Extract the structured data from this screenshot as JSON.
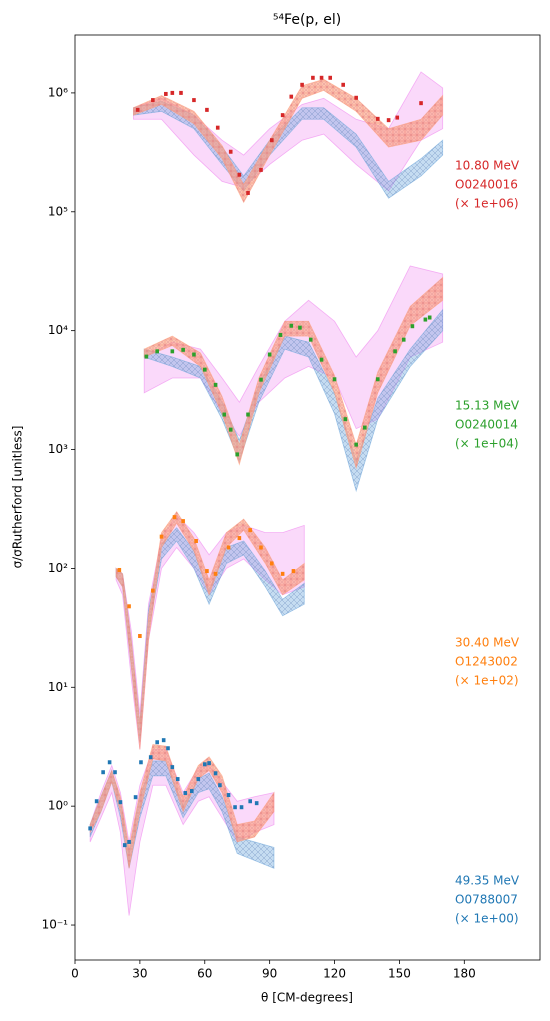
{
  "chart_data": {
    "type": "scatter",
    "title": "⁵⁴Fe(p, el)",
    "xlabel": "θ [CM-degrees]",
    "ylabel": "σ/σRutherford [unitless]",
    "log_y": true,
    "xlim": [
      0,
      215
    ],
    "ylim": [
      0.0508,
      3070000
    ],
    "xticks": [
      0,
      30,
      60,
      90,
      120,
      150,
      180
    ],
    "yticks": [
      {
        "value": 0.1,
        "label": "10⁻¹"
      },
      {
        "value": 1,
        "label": "10⁰"
      },
      {
        "value": 10,
        "label": "10¹"
      },
      {
        "value": 100,
        "label": "10²"
      },
      {
        "value": 1000,
        "label": "10³"
      },
      {
        "value": 10000,
        "label": "10⁴"
      },
      {
        "value": 100000,
        "label": "10⁵"
      },
      {
        "value": 1000000,
        "label": "10⁶"
      }
    ],
    "annotations": [
      {
        "color": "#d62728",
        "lines": [
          "10.80 MeV",
          "O0240016",
          "(× 1e+06)"
        ]
      },
      {
        "color": "#2ca02c",
        "lines": [
          "15.13 MeV",
          "O0240014",
          "(× 1e+04)"
        ]
      },
      {
        "color": "#ff7f0e",
        "lines": [
          "30.40 MeV",
          "O1243002",
          "(× 1e+02)"
        ]
      },
      {
        "color": "#1f77b4",
        "lines": [
          "49.35 MeV",
          "O0788007",
          "(× 1e+00)"
        ]
      }
    ],
    "bands": [
      {
        "color": "#ee82ee",
        "x": [
          27,
          40,
          55,
          68,
          78,
          90,
          105,
          115,
          130,
          145,
          160,
          170
        ],
        "lower": [
          600000,
          600000,
          300000,
          180000,
          160000,
          250000,
          400000,
          450000,
          250000,
          150000,
          400000,
          500000
        ],
        "upper": [
          750000,
          900000,
          650000,
          400000,
          300000,
          500000,
          800000,
          900000,
          600000,
          500000,
          1500000,
          1100000
        ]
      },
      {
        "color": "#6fa8dc",
        "x": [
          27,
          40,
          55,
          68,
          78,
          90,
          105,
          115,
          130,
          145,
          160,
          170
        ],
        "lower": [
          650000,
          700000,
          500000,
          250000,
          150000,
          300000,
          600000,
          600000,
          350000,
          130000,
          200000,
          300000
        ],
        "upper": [
          750000,
          850000,
          650000,
          350000,
          200000,
          400000,
          750000,
          750000,
          450000,
          180000,
          280000,
          400000
        ]
      },
      {
        "color": "#ffa07a",
        "x": [
          27,
          40,
          55,
          68,
          78,
          90,
          105,
          115,
          130,
          145,
          160,
          170
        ],
        "lower": [
          650000,
          800000,
          550000,
          280000,
          120000,
          300000,
          900000,
          1050000,
          700000,
          350000,
          400000,
          650000
        ],
        "upper": [
          750000,
          950000,
          700000,
          360000,
          170000,
          400000,
          1150000,
          1300000,
          900000,
          500000,
          600000,
          950000
        ]
      },
      {
        "color": "#ee82ee",
        "x": [
          32,
          45,
          58,
          68,
          76,
          85,
          97,
          108,
          120,
          130,
          140,
          155,
          170
        ],
        "lower": [
          3000,
          4000,
          4000,
          2000,
          1300,
          2500,
          4000,
          5000,
          4000,
          1500,
          1800,
          6000,
          8000
        ],
        "upper": [
          6000,
          8000,
          7000,
          4000,
          2500,
          5000,
          12000,
          18000,
          12000,
          6000,
          10000,
          35000,
          30000
        ]
      },
      {
        "color": "#6fa8dc",
        "x": [
          32,
          45,
          58,
          68,
          76,
          85,
          97,
          108,
          120,
          130,
          140,
          155,
          170
        ],
        "lower": [
          6000,
          5000,
          4000,
          1800,
          800,
          2500,
          7000,
          6000,
          2000,
          450,
          1800,
          5000,
          10000
        ],
        "upper": [
          7000,
          6000,
          5000,
          2500,
          1200,
          3500,
          9000,
          8000,
          3000,
          800,
          2700,
          7000,
          15000
        ]
      },
      {
        "color": "#ffa07a",
        "x": [
          32,
          45,
          58,
          68,
          76,
          85,
          97,
          108,
          120,
          130,
          140,
          155,
          170
        ],
        "lower": [
          6000,
          7500,
          5000,
          2000,
          750,
          3000,
          9000,
          9000,
          3000,
          700,
          3000,
          11000,
          18000
        ],
        "upper": [
          7000,
          9000,
          6500,
          2800,
          1100,
          4000,
          12000,
          12000,
          4200,
          1100,
          4500,
          16000,
          28000
        ]
      },
      {
        "color": "#ee82ee",
        "x": [
          19,
          22,
          26,
          30,
          34,
          40,
          47,
          55,
          62,
          70,
          78,
          88,
          96,
          106
        ],
        "lower": [
          80,
          60,
          12,
          3,
          25,
          100,
          150,
          100,
          60,
          100,
          120,
          80,
          60,
          70
        ],
        "upper": [
          100,
          90,
          30,
          6,
          50,
          180,
          280,
          200,
          130,
          200,
          230,
          200,
          200,
          230
        ]
      },
      {
        "color": "#6fa8dc",
        "x": [
          19,
          22,
          26,
          30,
          34,
          40,
          47,
          55,
          62,
          70,
          78,
          88,
          96,
          106
        ],
        "lower": [
          85,
          70,
          15,
          3.5,
          30,
          120,
          170,
          100,
          50,
          110,
          130,
          70,
          40,
          50
        ],
        "upper": [
          100,
          90,
          25,
          5,
          45,
          160,
          220,
          140,
          65,
          150,
          170,
          95,
          55,
          75
        ]
      },
      {
        "color": "#ffa07a",
        "x": [
          19,
          22,
          26,
          30,
          34,
          40,
          47,
          55,
          62,
          70,
          78,
          88,
          96,
          106
        ],
        "lower": [
          85,
          70,
          15,
          3,
          25,
          150,
          240,
          140,
          60,
          150,
          210,
          110,
          60,
          80
        ],
        "upper": [
          100,
          90,
          25,
          5,
          40,
          200,
          300,
          180,
          80,
          200,
          260,
          150,
          80,
          110
        ]
      },
      {
        "color": "#ee82ee",
        "x": [
          7,
          12,
          17,
          21,
          25,
          30,
          36,
          42,
          50,
          57,
          62,
          68,
          75,
          83,
          92
        ],
        "lower": [
          0.5,
          0.8,
          1.3,
          0.6,
          0.12,
          0.5,
          1.5,
          1.5,
          0.7,
          1.1,
          1.2,
          0.8,
          0.5,
          0.6,
          0.7
        ],
        "upper": [
          0.7,
          1.3,
          2.2,
          1.3,
          0.5,
          1.5,
          3,
          3,
          1.3,
          2.1,
          2.2,
          1.6,
          1.1,
          1.2,
          1.3
        ]
      },
      {
        "color": "#6fa8dc",
        "x": [
          7,
          12,
          17,
          21,
          25,
          30,
          36,
          42,
          50,
          57,
          62,
          68,
          75,
          83,
          92
        ],
        "lower": [
          0.55,
          0.9,
          1.6,
          0.8,
          0.3,
          0.8,
          1.8,
          1.8,
          0.8,
          1.3,
          1.4,
          0.9,
          0.4,
          0.35,
          0.3
        ],
        "upper": [
          0.7,
          1.2,
          2,
          1.1,
          0.4,
          1.2,
          2.4,
          2.4,
          1,
          1.7,
          1.9,
          1.2,
          0.55,
          0.5,
          0.45
        ]
      },
      {
        "color": "#ffa07a",
        "x": [
          7,
          12,
          17,
          21,
          25,
          30,
          36,
          42,
          50,
          57,
          62,
          68,
          75,
          83,
          92
        ],
        "lower": [
          0.6,
          0.9,
          1.6,
          0.9,
          0.3,
          0.9,
          2.5,
          2.4,
          0.9,
          1.7,
          2,
          1.3,
          0.5,
          0.55,
          0.9
        ],
        "upper": [
          0.7,
          1.2,
          2,
          1.2,
          0.45,
          1.3,
          3.3,
          3.2,
          1.2,
          2.2,
          2.6,
          1.8,
          0.7,
          0.75,
          1.3
        ]
      }
    ],
    "series": [
      {
        "color": "#d62728",
        "x": [
          29,
          36,
          42,
          45,
          49,
          55,
          61,
          66,
          72,
          76,
          80,
          86,
          91,
          96,
          100,
          105,
          110,
          114,
          118,
          124,
          130,
          140,
          145,
          149,
          160
        ],
        "values": [
          720000,
          870000,
          980000,
          1000000,
          1000000,
          870000,
          720000,
          510000,
          320000,
          205000,
          144000,
          225000,
          400000,
          650000,
          930000,
          1170000,
          1340000,
          1340000,
          1340000,
          1170000,
          910000,
          605000,
          590000,
          620000,
          820000
        ]
      },
      {
        "color": "#2ca02c",
        "x": [
          33,
          38,
          45,
          50,
          55,
          60,
          65,
          69,
          72,
          75,
          80,
          86,
          90,
          95,
          100,
          104,
          109,
          114,
          120,
          125,
          130,
          134,
          140,
          148,
          152,
          156,
          162,
          164
        ],
        "values": [
          6050,
          6700,
          6700,
          6900,
          6300,
          4700,
          3500,
          1970,
          1470,
          910,
          1970,
          3870,
          6300,
          9200,
          11000,
          10600,
          8400,
          5700,
          3900,
          1800,
          1100,
          1530,
          3900,
          6700,
          8400,
          10900,
          12400,
          12900
        ]
      },
      {
        "color": "#ff7f0e",
        "x": [
          20.5,
          25,
          30,
          36,
          40,
          46,
          50,
          56,
          61,
          65,
          71,
          76,
          81,
          86,
          91,
          96,
          101
        ],
        "values": [
          97,
          48,
          27,
          65,
          185,
          270,
          250,
          170,
          95,
          90,
          150,
          180,
          210,
          150,
          110,
          90,
          95
        ]
      },
      {
        "color": "#1f77b4",
        "x": [
          7,
          10,
          13,
          16,
          18.5,
          21,
          23,
          25,
          28,
          30.5,
          35,
          38,
          41,
          43,
          45,
          47.5,
          51,
          54,
          57,
          60,
          62,
          65,
          67,
          71,
          74,
          77,
          81,
          84
        ],
        "values": [
          0.65,
          1.1,
          1.93,
          2.34,
          1.93,
          1.08,
          0.47,
          0.5,
          1.19,
          2.34,
          2.58,
          3.45,
          3.59,
          3.07,
          2.13,
          1.69,
          1.29,
          1.34,
          1.69,
          2.25,
          2.3,
          1.89,
          1.5,
          1.24,
          0.98,
          0.98,
          1.1,
          1.06
        ]
      }
    ]
  }
}
